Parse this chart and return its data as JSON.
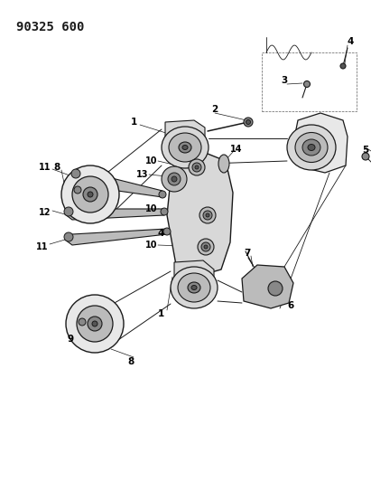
{
  "title": "90325 600",
  "bg_color": "#ffffff",
  "fig_width": 4.11,
  "fig_height": 5.33,
  "dpi": 100,
  "line_color": "#1a1a1a",
  "gray_dark": "#555555",
  "gray_mid": "#888888",
  "gray_light": "#bbbbbb",
  "gray_fill": "#d8d8d8",
  "gray_lighter": "#e8e8e8"
}
